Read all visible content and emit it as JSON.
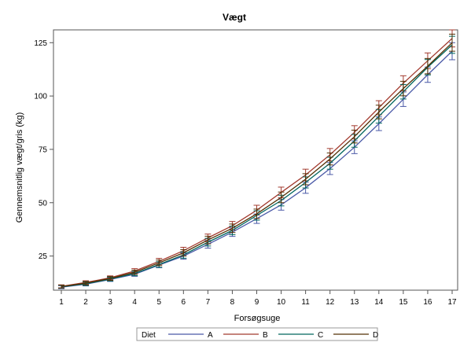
{
  "chart_data": {
    "type": "line",
    "title": "Vægt",
    "xlabel": "Forsøgsuge",
    "ylabel": "Gennemsnitlig vægt/gris (kg)",
    "x": [
      1,
      2,
      3,
      4,
      5,
      6,
      7,
      8,
      9,
      10,
      11,
      12,
      13,
      14,
      15,
      16,
      17
    ],
    "xlim": [
      1,
      17
    ],
    "ylim": [
      9,
      131
    ],
    "yticks": [
      25,
      50,
      75,
      100,
      125
    ],
    "grid": false,
    "error_bars": true,
    "legend": {
      "title": "Diet",
      "position": "bottom"
    },
    "series": [
      {
        "name": "A",
        "color": "#4a59a7",
        "values": [
          10.4,
          11.8,
          14.0,
          16.5,
          20.8,
          25.0,
          30.5,
          36.2,
          42.5,
          49.0,
          57.0,
          66.0,
          76.0,
          87.0,
          98.5,
          110.0,
          121.0
        ],
        "err": [
          0.7,
          0.8,
          0.9,
          1.0,
          1.3,
          1.5,
          1.8,
          2.0,
          2.2,
          2.5,
          2.6,
          2.8,
          3.0,
          3.2,
          3.4,
          3.6,
          4.0
        ]
      },
      {
        "name": "B",
        "color": "#a23a2e",
        "values": [
          10.8,
          12.6,
          14.8,
          18.0,
          22.5,
          27.5,
          33.5,
          39.2,
          46.5,
          54.8,
          63.0,
          72.5,
          83.0,
          94.5,
          106.0,
          116.5,
          127.0
        ],
        "err": [
          0.7,
          0.8,
          0.9,
          1.1,
          1.4,
          1.6,
          1.8,
          2.0,
          2.3,
          2.5,
          2.7,
          2.9,
          3.1,
          3.3,
          3.5,
          3.7,
          4.0
        ]
      },
      {
        "name": "C",
        "color": "#01665e",
        "values": [
          10.6,
          12.0,
          14.2,
          16.8,
          21.0,
          25.5,
          31.5,
          37.0,
          44.0,
          51.0,
          59.5,
          68.5,
          79.0,
          90.5,
          102.0,
          113.5,
          124.0
        ],
        "err": [
          0.7,
          0.8,
          0.9,
          1.0,
          1.3,
          1.5,
          1.8,
          2.0,
          2.2,
          2.5,
          2.6,
          2.8,
          3.0,
          3.2,
          3.4,
          3.6,
          4.0
        ]
      },
      {
        "name": "D",
        "color": "#543005",
        "values": [
          10.7,
          12.3,
          14.5,
          17.4,
          21.8,
          26.5,
          32.5,
          38.0,
          44.8,
          52.5,
          61.0,
          70.5,
          81.0,
          92.5,
          103.5,
          114.0,
          125.0
        ],
        "err": [
          0.7,
          0.8,
          0.9,
          1.0,
          1.3,
          1.5,
          1.8,
          2.0,
          2.2,
          2.5,
          2.6,
          2.8,
          3.0,
          3.2,
          3.4,
          3.6,
          4.0
        ]
      }
    ]
  }
}
